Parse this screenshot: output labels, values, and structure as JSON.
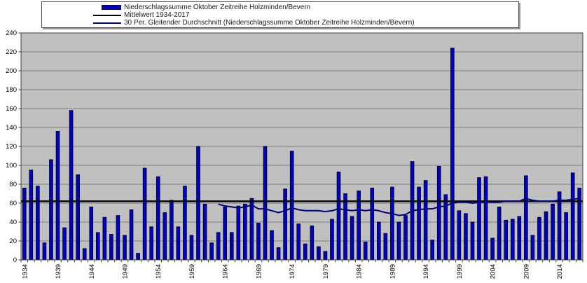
{
  "legend": {
    "entries": [
      {
        "label": "Niederschlagssumme Oktober Zeitreihe Holzminden/Bevern",
        "marker": "rect",
        "color": "#0000cc"
      },
      {
        "label": "Mittelwert 1934-2017",
        "marker": "line",
        "color": "#000000"
      },
      {
        "label": "30 Per. Gleitender Durchschnitt (Niederschlagssumme Oktober Zeitreihe Holzminden/Bevern)",
        "marker": "line",
        "color": "#000080"
      }
    ]
  },
  "chart_data": {
    "type": "bar",
    "title": "",
    "xlabel": "",
    "ylabel": "",
    "ylim": [
      0,
      240
    ],
    "ytick_step": 20,
    "x_start_year": 1934,
    "x_end_year": 2017,
    "xtick_labels": [
      "1934",
      "1939",
      "1944",
      "1949",
      "1954",
      "1959",
      "1964",
      "1969",
      "1974",
      "1979",
      "1984",
      "1989",
      "1994",
      "1999",
      "2004",
      "2009",
      "2014"
    ],
    "grid": true,
    "plot_bg": "#c0c0c0",
    "gridline_color": "#808080",
    "axis_color": "#404040",
    "legend_position": "top",
    "series": [
      {
        "name": "Niederschlagssumme Oktober Zeitreihe Holzminden/Bevern",
        "type": "bar",
        "color": "#0000cc",
        "start_year": 1934,
        "values": [
          76,
          95,
          78,
          18,
          106,
          136,
          34,
          158,
          90,
          12,
          56,
          29,
          45,
          27,
          47,
          26,
          53,
          7,
          97,
          35,
          88,
          50,
          63,
          35,
          78,
          26,
          120,
          59,
          18,
          29,
          56,
          29,
          57,
          59,
          65,
          39,
          120,
          31,
          13,
          75,
          115,
          38,
          17,
          36,
          14,
          9,
          43,
          93,
          70,
          46,
          73,
          19,
          76,
          40,
          28,
          77,
          40,
          47,
          104,
          77,
          84,
          21,
          99,
          69,
          224,
          52,
          49,
          40,
          87,
          88,
          23,
          56,
          42,
          43,
          46,
          89,
          26,
          45,
          51,
          59,
          72,
          50,
          92,
          76
        ]
      },
      {
        "name": "Mittelwert 1934-2017",
        "type": "hline",
        "color": "#000000",
        "value": 62
      },
      {
        "name": "30 Per. Gleitender Durchschnitt (Niederschlagssumme Oktober Zeitreihe Holzminden/Bevern)",
        "type": "line",
        "color": "#000080",
        "start_year": 1963,
        "values": [
          59,
          57,
          56,
          55,
          56,
          58,
          54,
          54,
          52,
          50,
          52,
          55,
          53,
          52,
          52,
          52,
          51,
          52,
          54,
          53,
          52,
          53,
          52,
          53,
          52,
          50,
          49,
          47,
          48,
          52,
          53,
          54,
          54,
          56,
          57,
          60,
          61,
          61,
          60,
          61,
          61,
          61,
          61,
          62,
          62,
          62,
          65,
          63,
          62,
          62,
          62,
          63,
          63,
          64,
          65
        ]
      }
    ]
  }
}
